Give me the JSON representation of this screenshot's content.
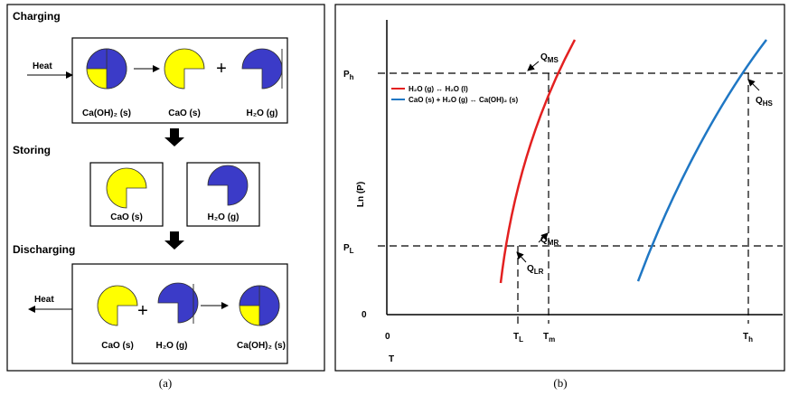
{
  "panel_a": {
    "caption": "(a)",
    "sections": [
      {
        "title": "Charging",
        "heat": "Heat",
        "plus": "+",
        "labels": [
          "Ca(OH)₂ (s)",
          "CaO (s)",
          "H₂O (g)"
        ]
      },
      {
        "title": "Storing",
        "labels": [
          "CaO (s)",
          "H₂O (g)"
        ]
      },
      {
        "title": "Discharging",
        "heat": "Heat",
        "plus": "+",
        "labels": [
          "CaO (s)",
          "H₂O (g)",
          "Ca(OH)₂ (s)"
        ]
      }
    ]
  },
  "panel_b": {
    "caption": "(b)",
    "y_label": "Ln (P)",
    "x_label": "T",
    "y_origin": "0",
    "x_origin": "0",
    "pressures": [
      {
        "base": "P",
        "sub": "h"
      },
      {
        "base": "P",
        "sub": "L"
      }
    ],
    "temperatures": [
      {
        "base": "T",
        "sub": "L"
      },
      {
        "base": "T",
        "sub": "m"
      },
      {
        "base": "T",
        "sub": "h"
      }
    ],
    "legend": [
      "H₂O (g) ↔ H₂O (l)",
      "CaO (s) + H₂O (g) ↔ Ca(OH)₂ (s)"
    ],
    "heat_flows": [
      {
        "base": "Q",
        "sub": "MS"
      },
      {
        "base": "Q",
        "sub": "HS"
      },
      {
        "base": "Q",
        "sub": "MR"
      },
      {
        "base": "Q",
        "sub": "LR"
      }
    ]
  }
}
